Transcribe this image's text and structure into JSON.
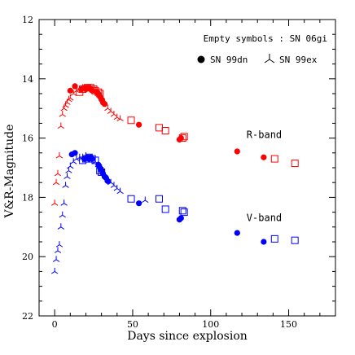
{
  "chart_data": {
    "type": "scatter",
    "title": "",
    "xlabel": "Days since explosion",
    "ylabel": "V&R-Magnitude",
    "xlim": [
      -10,
      180
    ],
    "ylim": [
      12,
      22
    ],
    "y_inverted": true,
    "xticks": [
      0,
      50,
      100,
      150
    ],
    "yticks": [
      12,
      14,
      16,
      18,
      20,
      22
    ],
    "grid": false,
    "legend": {
      "placement": "top-right",
      "header": "Empty symbols : SN 06gi",
      "entries": [
        {
          "label": "SN 99dn",
          "marker": "filled-circle"
        },
        {
          "label": "SN 99ex",
          "marker": "tripod"
        }
      ]
    },
    "annotations": [
      {
        "text": "R-band",
        "x": 123,
        "y": 16.0
      },
      {
        "text": "V-band",
        "x": 123,
        "y": 18.8
      }
    ],
    "colors": {
      "R": "#ff0000",
      "V": "#0000ff"
    },
    "series": [
      {
        "name": "SN 99dn",
        "band": "R",
        "marker": "filled-circle",
        "x": [
          10,
          13,
          17,
          19,
          20,
          21,
          22,
          23,
          24,
          27,
          28,
          29,
          30,
          31,
          32,
          54,
          80,
          81,
          117,
          134
        ],
        "y": [
          14.4,
          14.25,
          14.35,
          14.3,
          14.35,
          14.3,
          14.3,
          14.35,
          14.4,
          14.45,
          14.5,
          14.6,
          14.7,
          14.8,
          14.85,
          15.55,
          16.05,
          16.0,
          16.45,
          16.65
        ]
      },
      {
        "name": "SN 06gi",
        "band": "R",
        "marker": "open-square",
        "x": [
          16,
          18,
          21,
          23,
          25,
          26,
          28,
          29,
          49,
          67,
          71,
          82,
          83,
          141,
          154
        ],
        "y": [
          14.45,
          14.35,
          14.3,
          14.3,
          14.35,
          14.4,
          14.45,
          14.5,
          15.4,
          15.65,
          15.75,
          16.0,
          15.95,
          16.7,
          16.85
        ]
      },
      {
        "name": "SN 99ex",
        "band": "R",
        "marker": "tripod",
        "x": [
          0,
          1,
          2,
          3,
          4,
          5,
          6,
          7,
          8,
          9,
          10,
          12,
          14,
          16,
          18,
          20,
          24,
          26,
          28,
          30,
          32,
          34,
          36,
          38,
          40,
          42
        ],
        "y": [
          18.2,
          17.5,
          17.2,
          16.6,
          15.6,
          15.2,
          15.0,
          14.9,
          14.8,
          14.7,
          14.65,
          14.5,
          14.4,
          14.35,
          14.3,
          14.3,
          14.35,
          14.4,
          14.5,
          14.6,
          14.8,
          15.0,
          15.1,
          15.2,
          15.3,
          15.35
        ]
      },
      {
        "name": "SN 99dn",
        "band": "V",
        "marker": "filled-circle",
        "x": [
          11,
          13,
          19,
          21,
          22,
          23,
          24,
          28,
          29,
          30,
          31,
          32,
          33,
          34,
          54,
          80,
          81,
          117,
          134
        ],
        "y": [
          16.55,
          16.5,
          16.7,
          16.65,
          16.7,
          16.65,
          16.7,
          16.9,
          17.0,
          17.1,
          17.2,
          17.3,
          17.35,
          17.45,
          18.2,
          18.75,
          18.7,
          19.2,
          19.5
        ]
      },
      {
        "name": "SN 06gi",
        "band": "V",
        "marker": "open-square",
        "x": [
          18,
          20,
          22,
          24,
          26,
          29,
          30,
          49,
          67,
          71,
          82,
          83,
          141,
          154
        ],
        "y": [
          16.75,
          16.7,
          16.65,
          16.7,
          16.75,
          17.1,
          17.15,
          18.05,
          18.05,
          18.4,
          18.45,
          18.5,
          19.4,
          19.45
        ]
      },
      {
        "name": "SN 99ex",
        "band": "V",
        "marker": "tripod",
        "x": [
          0,
          1,
          2,
          3,
          4,
          5,
          6,
          7,
          8,
          9,
          10,
          12,
          14,
          16,
          18,
          20,
          24,
          26,
          28,
          30,
          32,
          34,
          36,
          38,
          40,
          42,
          58
        ],
        "y": [
          20.5,
          20.1,
          19.8,
          19.6,
          19.0,
          18.6,
          18.2,
          17.6,
          17.3,
          17.1,
          16.95,
          16.8,
          16.7,
          16.65,
          16.65,
          16.6,
          16.7,
          16.8,
          16.9,
          17.0,
          17.2,
          17.4,
          17.5,
          17.6,
          17.7,
          17.8,
          18.1
        ]
      }
    ]
  }
}
